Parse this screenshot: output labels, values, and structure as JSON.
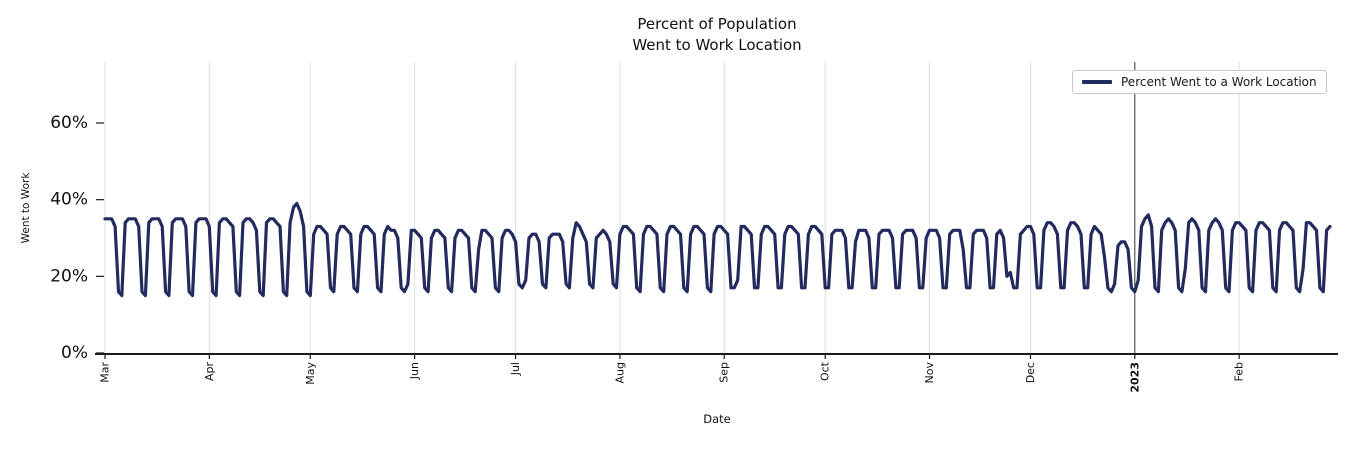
{
  "title": {
    "line1": "Percent of Population",
    "line2": "Went to Work Location"
  },
  "axes": {
    "y_label": "Went to Work",
    "x_label": "Date"
  },
  "legend": {
    "label": "Percent Went to a Work Location"
  },
  "colors": {
    "line": "#232a5e",
    "grid": "#dedede",
    "axis_spine": "#1a1a1a",
    "year_divider": "#3d3d3d",
    "tick_text": "#111111",
    "legend_border": "#c9c9c9"
  },
  "chart_data": {
    "type": "line",
    "title": "Percent of Population\nWent to Work Location",
    "xlabel": "Date",
    "ylabel": "Went to Work",
    "ylim": [
      0,
      76
    ],
    "grid": "vertical-only",
    "legend_position": "upper right",
    "x_start": "2022-03-01",
    "x_end": "2023-02-28",
    "frequency": "daily",
    "y_ticks": [
      {
        "label": "0%",
        "value": 0
      },
      {
        "label": "20%",
        "value": 20
      },
      {
        "label": "40%",
        "value": 40
      },
      {
        "label": "60%",
        "value": 60
      }
    ],
    "x_ticks": [
      {
        "label": "Mar",
        "day": 0,
        "bold": false
      },
      {
        "label": "Apr",
        "day": 31,
        "bold": false
      },
      {
        "label": "May",
        "day": 61,
        "bold": false
      },
      {
        "label": "Jun",
        "day": 92,
        "bold": false
      },
      {
        "label": "Jul",
        "day": 122,
        "bold": false
      },
      {
        "label": "Aug",
        "day": 153,
        "bold": false
      },
      {
        "label": "Sep",
        "day": 184,
        "bold": false
      },
      {
        "label": "Oct",
        "day": 214,
        "bold": false
      },
      {
        "label": "Nov",
        "day": 245,
        "bold": false
      },
      {
        "label": "Dec",
        "day": 275,
        "bold": false
      },
      {
        "label": "2023",
        "day": 306,
        "bold": true
      },
      {
        "label": "Feb",
        "day": 337,
        "bold": false
      }
    ],
    "year_divider_day": 306,
    "series": [
      {
        "name": "Percent Went to a Work Location",
        "values": [
          35,
          35,
          35,
          33,
          16,
          15,
          34,
          35,
          35,
          35,
          33,
          16,
          15,
          34,
          35,
          35,
          35,
          33,
          16,
          15,
          34,
          35,
          35,
          35,
          33,
          16,
          15,
          34,
          35,
          35,
          35,
          33,
          16,
          15,
          34,
          35,
          35,
          34,
          33,
          16,
          15,
          34,
          35,
          35,
          34,
          32,
          16,
          15,
          34,
          35,
          35,
          34,
          33,
          16,
          15,
          34,
          38,
          39,
          37,
          33,
          16,
          15,
          31,
          33,
          33,
          32,
          31,
          17,
          16,
          31,
          33,
          33,
          32,
          31,
          17,
          16,
          31,
          33,
          33,
          32,
          31,
          17,
          16,
          31,
          33,
          32,
          32,
          30,
          17,
          16,
          18,
          32,
          32,
          31,
          30,
          17,
          16,
          30,
          32,
          32,
          31,
          30,
          17,
          16,
          30,
          32,
          32,
          31,
          30,
          17,
          16,
          27,
          32,
          32,
          31,
          30,
          17,
          16,
          30,
          32,
          32,
          31,
          29,
          18,
          17,
          19,
          30,
          31,
          31,
          29,
          18,
          17,
          30,
          31,
          31,
          31,
          29,
          18,
          17,
          30,
          34,
          33,
          31,
          29,
          18,
          17,
          30,
          31,
          32,
          31,
          29,
          18,
          17,
          31,
          33,
          33,
          32,
          31,
          17,
          16,
          31,
          33,
          33,
          32,
          31,
          17,
          16,
          31,
          33,
          33,
          32,
          31,
          17,
          16,
          31,
          33,
          33,
          32,
          31,
          17,
          16,
          31,
          33,
          33,
          32,
          31,
          17,
          17,
          19,
          33,
          33,
          32,
          31,
          17,
          17,
          31,
          33,
          33,
          32,
          31,
          17,
          17,
          31,
          33,
          33,
          32,
          31,
          17,
          17,
          31,
          33,
          33,
          32,
          31,
          17,
          17,
          31,
          32,
          32,
          32,
          30,
          17,
          17,
          29,
          32,
          32,
          32,
          30,
          17,
          17,
          31,
          32,
          32,
          32,
          30,
          17,
          17,
          31,
          32,
          32,
          32,
          30,
          17,
          17,
          30,
          32,
          32,
          32,
          30,
          17,
          17,
          31,
          32,
          32,
          32,
          27,
          17,
          17,
          31,
          32,
          32,
          32,
          30,
          17,
          17,
          31,
          32,
          30,
          20,
          21,
          17,
          17,
          31,
          32,
          33,
          33,
          31,
          17,
          17,
          32,
          34,
          34,
          33,
          31,
          17,
          17,
          32,
          34,
          34,
          33,
          31,
          17,
          17,
          31,
          33,
          32,
          31,
          25,
          17,
          16,
          18,
          28,
          29,
          29,
          27,
          17,
          16,
          19,
          33,
          35,
          36,
          33,
          17,
          16,
          32,
          34,
          35,
          34,
          32,
          17,
          16,
          22,
          34,
          35,
          34,
          32,
          17,
          16,
          32,
          34,
          35,
          34,
          32,
          17,
          16,
          32,
          34,
          34,
          33,
          32,
          17,
          16,
          32,
          34,
          34,
          33,
          32,
          17,
          16,
          32,
          34,
          34,
          33,
          32,
          17,
          16,
          22,
          34,
          34,
          33,
          32,
          17,
          16,
          32,
          33
        ]
      }
    ]
  }
}
